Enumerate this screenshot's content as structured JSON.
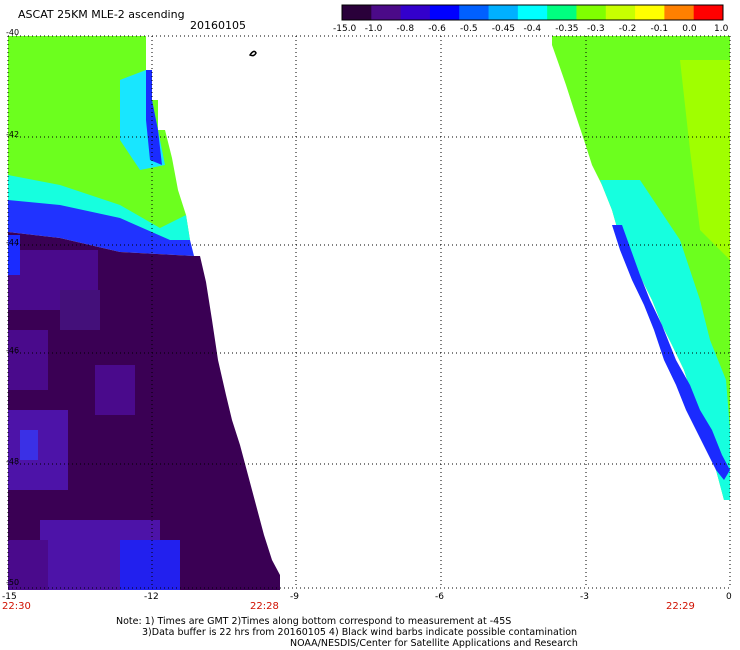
{
  "header": {
    "title": "ASCAT 25KM MLE-2 ascending",
    "date": "20160105"
  },
  "colorbar": {
    "labels": [
      "-15.0",
      "-1.0",
      "-0.8",
      "-0.6",
      "-0.5",
      "-0.45",
      "-0.4",
      "-0.35",
      "-0.3",
      "-0.2",
      "-0.1",
      "0.0",
      "1.0"
    ],
    "colors": [
      "#2a003a",
      "#4b0a88",
      "#3300cc",
      "#0000ff",
      "#0060ff",
      "#00b0ff",
      "#00ffff",
      "#00ff80",
      "#80ff00",
      "#c8ff00",
      "#ffff00",
      "#ff8000",
      "#ff0000"
    ]
  },
  "map": {
    "x_ticks": [
      "-15",
      "-12",
      "-9",
      "-6",
      "-3",
      "0"
    ],
    "y_ticks": [
      "-40",
      "-42",
      "-44",
      "-46",
      "-48",
      "-50"
    ],
    "times": [
      "22:30",
      "22:28",
      "22:29"
    ]
  },
  "footer": {
    "line1": "Note: 1) Times are GMT 2)Times along bottom correspond to measurement at -45S",
    "line2": "3)Data buffer is 22 hrs from 20160105 4) Black wind barbs indicate possible contamination",
    "line3": "NOAA/NESDIS/Center for Satellite Applications and Research"
  }
}
